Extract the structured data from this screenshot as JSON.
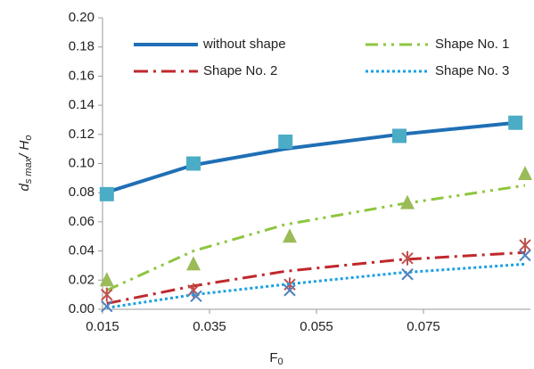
{
  "chart_data": {
    "type": "scatter-fit",
    "xlabel": {
      "main": "F",
      "sub": "0"
    },
    "ylabel": {
      "main": "d",
      "sub": "s max",
      "main2": "/ H",
      "sub2": "o"
    },
    "xlim": [
      0.015,
      0.095
    ],
    "xticks": [
      0.015,
      0.035,
      0.055,
      0.075
    ],
    "ylim": [
      0,
      0.2
    ],
    "yticks": [
      {
        "value": 0,
        "label": "0.00"
      },
      {
        "value": 0.02,
        "label": "0.02"
      },
      {
        "value": 0.04,
        "label": "0.04"
      },
      {
        "value": 0.06,
        "label": "0.06"
      },
      {
        "value": 0.08,
        "label": "0.08"
      },
      {
        "value": 0.1,
        "label": "0.10"
      },
      {
        "value": 0.12,
        "label": "0.12"
      },
      {
        "value": 0.14,
        "label": "0.14"
      },
      {
        "value": 0.16,
        "label": "0.16"
      },
      {
        "value": 0.18,
        "label": "0.18"
      },
      {
        "value": 0.2,
        "label": "0.20"
      }
    ],
    "series": [
      {
        "name": "without shape",
        "color": "#1f6fb5",
        "marker_color": "#4bacc6",
        "marker": "square",
        "dash": "none",
        "width": 4,
        "curve_x": [
          0.0155,
          0.032,
          0.049,
          0.0705,
          0.0922
        ],
        "curve_values": [
          0.08,
          0.099,
          0.11,
          0.12,
          0.128
        ],
        "x": [
          0.0158,
          0.032,
          0.0492,
          0.0705,
          0.0922
        ],
        "values": [
          0.079,
          0.1,
          0.115,
          0.119,
          0.128
        ]
      },
      {
        "name": "Shape No. 1",
        "color": "#8dc63f",
        "marker_color": "#9bbb59",
        "marker": "triangle",
        "dash": "14,6,3,6,3,6",
        "width": 3,
        "curve_x": [
          0.0158,
          0.032,
          0.049,
          0.0705,
          0.094
        ],
        "curve_values": [
          0.013,
          0.04,
          0.058,
          0.072,
          0.085
        ],
        "x": [
          0.0158,
          0.032,
          0.05,
          0.072,
          0.094
        ],
        "values": [
          0.02,
          0.031,
          0.05,
          0.073,
          0.093
        ]
      },
      {
        "name": "Shape No. 2",
        "color": "#c0282d",
        "marker_color": "#c0504d",
        "marker": "asterisk",
        "dash": "16,6,3,6",
        "width": 3,
        "curve_x": [
          0.0158,
          0.032,
          0.049,
          0.0705,
          0.094
        ],
        "curve_values": [
          0.004,
          0.016,
          0.026,
          0.034,
          0.039
        ],
        "x": [
          0.0158,
          0.032,
          0.05,
          0.072,
          0.094
        ],
        "values": [
          0.01,
          0.013,
          0.017,
          0.035,
          0.044
        ]
      },
      {
        "name": "Shape No. 3",
        "color": "#1ba1e2",
        "marker_color": "#4f81bd",
        "marker": "x",
        "dash": "3,3",
        "width": 3,
        "curve_x": [
          0.0158,
          0.032,
          0.049,
          0.0705,
          0.094
        ],
        "curve_values": [
          0.001,
          0.01,
          0.017,
          0.025,
          0.031
        ],
        "x": [
          0.0158,
          0.0325,
          0.05,
          0.072,
          0.094
        ],
        "values": [
          0.002,
          0.009,
          0.013,
          0.024,
          0.037
        ]
      }
    ]
  }
}
